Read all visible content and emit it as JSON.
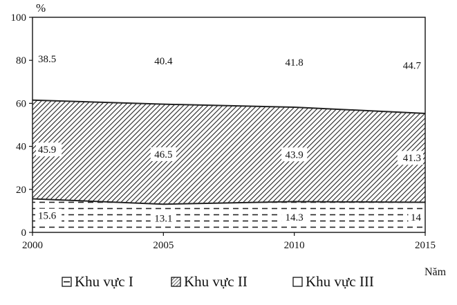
{
  "chart_data": {
    "type": "area",
    "stacked": true,
    "percent": true,
    "title": "",
    "xlabel": "Năm",
    "ylabel": "%",
    "ylim": [
      0,
      100
    ],
    "yticks": [
      0,
      20,
      40,
      60,
      80,
      100
    ],
    "x": [
      "2000",
      "2005",
      "2010",
      "2015"
    ],
    "series": [
      {
        "name": "Khu vực I",
        "values": [
          15.6,
          13.1,
          14.3,
          14
        ],
        "pattern": "dashed-lines"
      },
      {
        "name": "Khu vực II",
        "values": [
          45.9,
          46.5,
          43.9,
          41.3
        ],
        "pattern": "diagonal-hatch"
      },
      {
        "name": "Khu vực III",
        "values": [
          38.5,
          40.4,
          41.8,
          44.7
        ],
        "pattern": "blank"
      }
    ],
    "legend_position": "bottom",
    "grid": false
  }
}
